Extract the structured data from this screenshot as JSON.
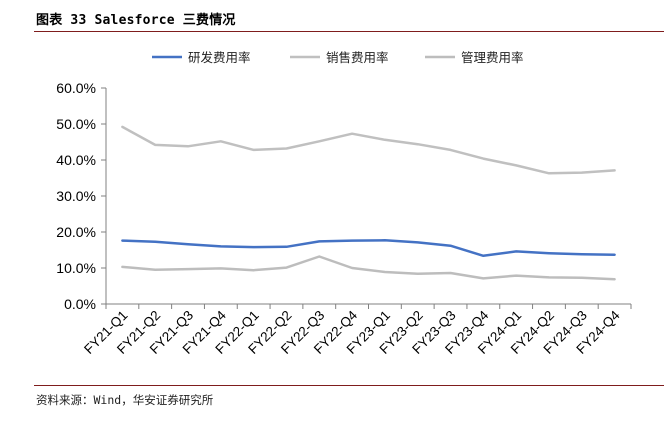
{
  "figure": {
    "title": "图表 33 Salesforce 三费情况",
    "source": "资料来源：Wind，华安证券研究所"
  },
  "chart_data": {
    "type": "line",
    "categories": [
      "FY21-Q1",
      "FY21-Q2",
      "FY21-Q3",
      "FY21-Q4",
      "FY22-Q1",
      "FY22-Q2",
      "FY22-Q3",
      "FY22-Q4",
      "FY23-Q1",
      "FY23-Q2",
      "FY23-Q3",
      "FY23-Q4",
      "FY24-Q1",
      "FY24-Q2",
      "FY24-Q3",
      "FY24-Q4"
    ],
    "y_ticks": [
      "0.0%",
      "10.0%",
      "20.0%",
      "30.0%",
      "40.0%",
      "50.0%",
      "60.0%"
    ],
    "ylim": [
      0,
      60
    ],
    "legend_position": "top",
    "grid": false,
    "series": [
      {
        "name": "研发费用率",
        "color": "#4472c4",
        "values": [
          17.6,
          17.3,
          16.6,
          16.0,
          15.8,
          15.9,
          17.4,
          17.6,
          17.7,
          17.1,
          16.2,
          13.4,
          14.6,
          14.1,
          13.8,
          13.7
        ]
      },
      {
        "name": "销售费用率",
        "color": "#c0c0c0",
        "values": [
          49.2,
          44.2,
          43.8,
          45.2,
          42.8,
          43.2,
          45.2,
          47.3,
          45.6,
          44.4,
          42.8,
          40.4,
          38.5,
          36.3,
          36.5,
          37.1
        ]
      },
      {
        "name": "管理费用率",
        "color": "#bdbdbd",
        "values": [
          10.3,
          9.5,
          9.7,
          9.9,
          9.4,
          10.1,
          13.2,
          10.0,
          8.9,
          8.4,
          8.6,
          7.1,
          7.9,
          7.4,
          7.3,
          6.9
        ]
      }
    ]
  }
}
